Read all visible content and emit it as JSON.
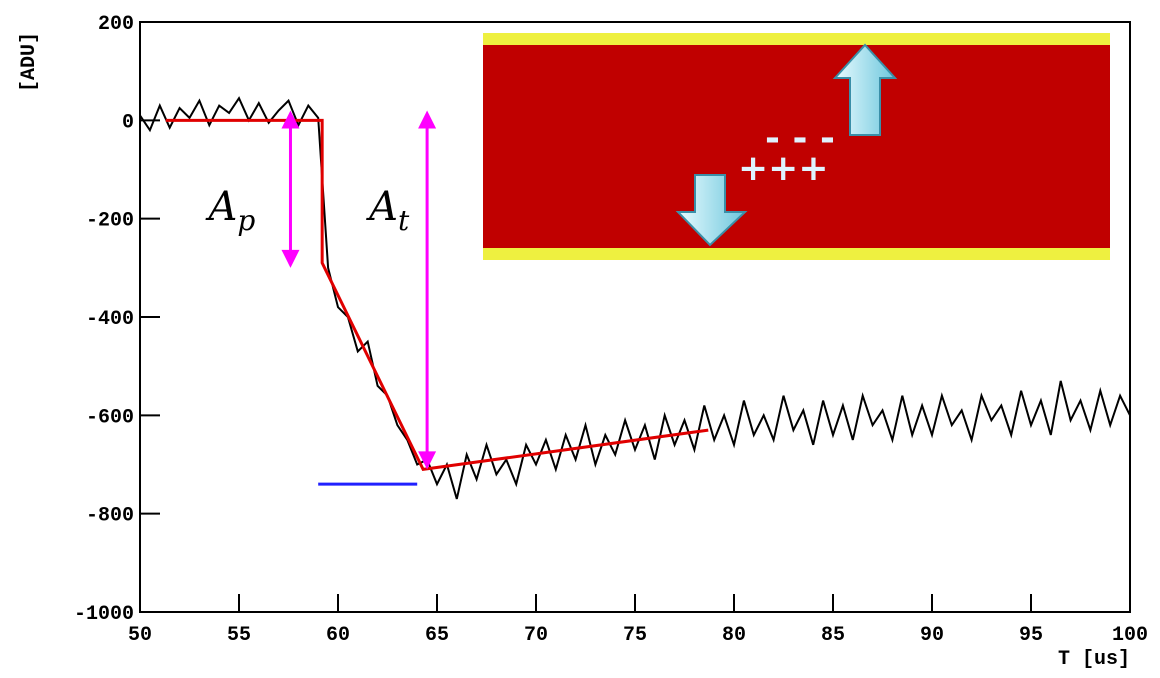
{
  "chart_data": {
    "type": "line",
    "xlabel": "T [us]",
    "ylabel": "[ADU]",
    "xlim": [
      50,
      100
    ],
    "xticks": [
      50,
      55,
      60,
      65,
      70,
      75,
      80,
      85,
      90,
      95,
      100
    ],
    "ylim": [
      -1000,
      200
    ],
    "yticks": [
      -1000,
      -800,
      -600,
      -400,
      -200,
      0,
      200
    ],
    "series": [
      {
        "color": "#000000",
        "x": [
          50,
          50.5,
          51,
          51.5,
          52,
          52.5,
          53,
          53.5,
          54,
          54.5,
          55,
          55.5,
          56,
          56.5,
          57,
          57.5,
          58,
          58.5,
          59,
          59.5,
          60,
          60.5,
          61,
          61.5,
          62,
          62.5,
          63,
          63.5,
          64,
          64.5,
          65,
          65.5,
          66,
          66.5,
          67,
          67.5,
          68,
          68.5,
          69,
          69.5,
          70,
          70.5,
          71,
          71.5,
          72,
          72.5,
          73,
          73.5,
          74,
          74.5,
          75,
          75.5,
          76,
          76.5,
          77,
          77.5,
          78,
          78.5,
          79,
          79.5,
          80,
          80.5,
          81,
          81.5,
          82,
          82.5,
          83,
          83.5,
          84,
          84.5,
          85,
          85.5,
          86,
          86.5,
          87,
          87.5,
          88,
          88.5,
          89,
          89.5,
          90,
          90.5,
          91,
          91.5,
          92,
          92.5,
          93,
          93.5,
          94,
          94.5,
          95,
          95.5,
          96,
          96.5,
          97,
          97.5,
          98,
          98.5,
          99,
          99.5,
          100
        ],
        "values": [
          10,
          -20,
          30,
          -15,
          25,
          5,
          40,
          -10,
          30,
          15,
          45,
          0,
          35,
          -5,
          20,
          40,
          -10,
          30,
          5,
          -300,
          -380,
          -400,
          -470,
          -450,
          -540,
          -560,
          -620,
          -650,
          -700,
          -690,
          -740,
          -700,
          -770,
          -680,
          -730,
          -660,
          -720,
          -690,
          -740,
          -660,
          -700,
          -650,
          -710,
          -640,
          -690,
          -620,
          -700,
          -640,
          -680,
          -610,
          -670,
          -620,
          -690,
          -600,
          -660,
          -610,
          -670,
          -580,
          -650,
          -600,
          -660,
          -570,
          -640,
          -600,
          -650,
          -560,
          -630,
          -590,
          -660,
          -570,
          -640,
          -580,
          -650,
          -560,
          -620,
          -590,
          -650,
          -560,
          -640,
          -580,
          -640,
          -560,
          -620,
          -590,
          -650,
          -560,
          -610,
          -580,
          -640,
          -550,
          -620,
          -570,
          -640,
          -530,
          -610,
          -570,
          -630,
          -550,
          -620,
          -560,
          -600
        ]
      },
      {
        "color": "#e00000",
        "x": [
          51.3,
          59.2,
          59.2,
          64.3,
          78.7
        ],
        "values": [
          0,
          0,
          -290,
          -710,
          -630
        ]
      },
      {
        "color": "#2020ff",
        "x": [
          59,
          64
        ],
        "values": [
          -740,
          -740
        ]
      }
    ],
    "annotations": [
      {
        "text": "A",
        "sub": "p",
        "x": 57.6,
        "y1": 20,
        "y2": -300,
        "color": "#ff00ff"
      },
      {
        "text": "A",
        "sub": "t",
        "x": 64.5,
        "y1": 20,
        "y2": -710,
        "color": "#ff00ff"
      }
    ],
    "inset": {
      "minus": "- - -",
      "plus": "+++"
    }
  }
}
